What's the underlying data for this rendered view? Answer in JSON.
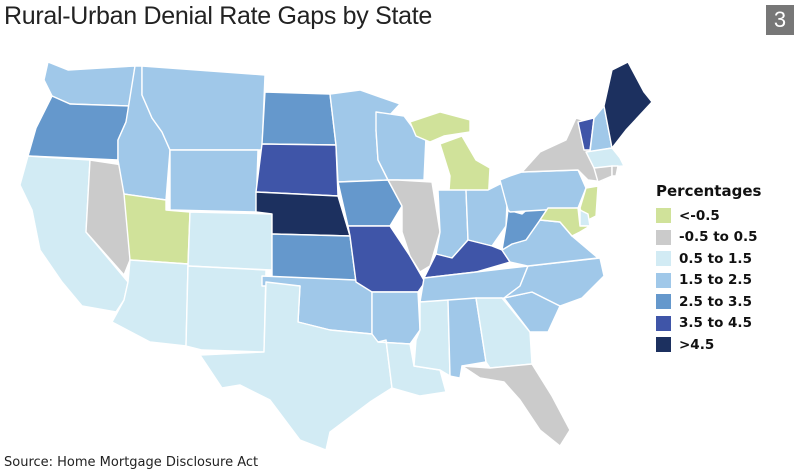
{
  "title": "Rural-Urban Denial Rate Gaps by State",
  "badge": "3",
  "source": "Source: Home Mortgage Disclosure Act",
  "legend": {
    "title": "Percentages",
    "placement": "right",
    "bins": [
      {
        "label": "<-0.5",
        "color": "#d0e29a"
      },
      {
        "label": "-0.5 to 0.5",
        "color": "#cbcbcb"
      },
      {
        "label": "0.5 to 1.5",
        "color": "#d2ebf4"
      },
      {
        "label": "1.5 to 2.5",
        "color": "#a0c8e9"
      },
      {
        "label": "2.5 to 3.5",
        "color": "#6598cc"
      },
      {
        "label": "3.5 to 4.5",
        "color": "#3f55a8"
      },
      {
        "label": ">4.5",
        "color": "#1c305f"
      }
    ]
  },
  "chart_data": {
    "type": "choropleth",
    "region": "contiguous United States",
    "state_bins": {
      "WA": 3,
      "OR": 4,
      "CA": 2,
      "NV": 1,
      "ID": 3,
      "MT": 3,
      "WY": 3,
      "UT": 0,
      "CO": 2,
      "AZ": 2,
      "NM": 2,
      "ND": 4,
      "SD": 5,
      "NE": 6,
      "KS": 4,
      "OK": 3,
      "TX": 2,
      "MN": 3,
      "IA": 4,
      "MO": 5,
      "AR": 3,
      "LA": 2,
      "WI": 3,
      "IL": 1,
      "MI": 0,
      "IN": 3,
      "OH": 3,
      "KY": 5,
      "TN": 3,
      "MS": 2,
      "AL": 3,
      "GA": 2,
      "FL": 1,
      "SC": 3,
      "NC": 3,
      "VA": 3,
      "WV": 4,
      "PA": 3,
      "NY": 1,
      "VT": 5,
      "NH": 3,
      "ME": 6,
      "MA": 2,
      "CT": 1,
      "RI": 1,
      "NJ": 0,
      "DE": 2,
      "MD": 0
    }
  }
}
